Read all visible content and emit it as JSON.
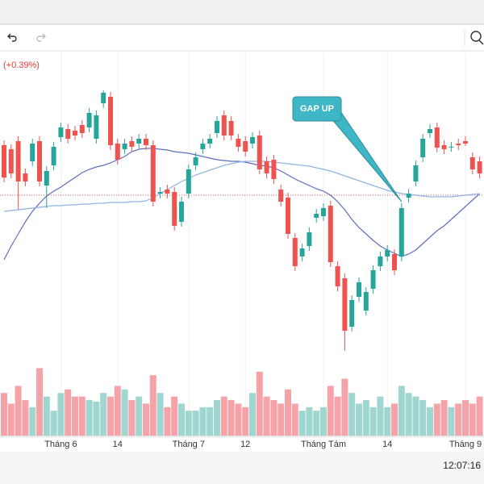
{
  "change_text": "(+0.39%)",
  "clock": "12:07:16",
  "chart_data": {
    "type": "candlestick",
    "categories": [
      null,
      null,
      null,
      null,
      null,
      null,
      null,
      null,
      "Tháng 6",
      null,
      null,
      null,
      null,
      null,
      null,
      null,
      "14",
      null,
      null,
      null,
      null,
      null,
      null,
      null,
      null,
      null,
      "Tháng 7",
      null,
      null,
      null,
      null,
      null,
      null,
      null,
      "12",
      null,
      null,
      null,
      null,
      null,
      null,
      null,
      null,
      null,
      null,
      "Tháng Tám",
      null,
      null,
      null,
      null,
      null,
      null,
      null,
      null,
      "14",
      null,
      null,
      null,
      null,
      null,
      null,
      null,
      null,
      null,
      null,
      "Tháng 9",
      null,
      null
    ],
    "open": [
      270,
      265,
      275,
      235,
      250,
      275,
      220,
      245,
      280,
      290,
      288,
      295,
      292,
      278,
      322,
      330,
      272,
      265,
      275,
      272,
      278,
      270,
      210,
      215,
      212,
      175,
      210,
      245,
      265,
      272,
      285,
      307,
      300,
      278,
      275,
      272,
      282,
      250,
      252,
      215,
      205,
      155,
      132,
      145,
      180,
      182,
      195,
      120,
      105,
      45,
      82,
      65,
      92,
      120,
      132,
      135,
      132,
      205,
      225,
      255,
      285,
      292,
      270,
      268,
      272,
      275,
      255,
      250
    ],
    "close": [
      230,
      235,
      225,
      225,
      272,
      225,
      238,
      268,
      292,
      278,
      282,
      285,
      310,
      307,
      335,
      270,
      252,
      272,
      268,
      278,
      270,
      200,
      212,
      210,
      170,
      200,
      240,
      255,
      272,
      278,
      300,
      282,
      282,
      268,
      262,
      280,
      240,
      235,
      228,
      200,
      160,
      120,
      142,
      162,
      185,
      192,
      125,
      95,
      40,
      78,
      100,
      88,
      115,
      132,
      140,
      115,
      192,
      210,
      245,
      278,
      290,
      267,
      265,
      268,
      270,
      272,
      240,
      235
    ],
    "high": [
      276,
      271,
      281,
      241,
      278,
      281,
      244,
      274,
      298,
      296,
      294,
      301,
      316,
      313,
      338,
      336,
      278,
      278,
      281,
      284,
      284,
      276,
      218,
      221,
      218,
      206,
      246,
      261,
      278,
      284,
      306,
      313,
      306,
      284,
      281,
      286,
      288,
      256,
      258,
      221,
      211,
      161,
      148,
      168,
      191,
      198,
      201,
      126,
      111,
      84,
      106,
      94,
      121,
      138,
      146,
      141,
      198,
      216,
      251,
      284,
      296,
      298,
      276,
      274,
      278,
      281,
      261,
      256
    ],
    "low": [
      224,
      229,
      190,
      219,
      244,
      219,
      192,
      239,
      274,
      272,
      276,
      279,
      286,
      272,
      316,
      264,
      246,
      259,
      262,
      266,
      264,
      194,
      204,
      204,
      164,
      169,
      204,
      239,
      259,
      266,
      279,
      276,
      276,
      262,
      256,
      266,
      234,
      229,
      222,
      194,
      154,
      114,
      126,
      139,
      174,
      176,
      119,
      89,
      15,
      39,
      76,
      59,
      86,
      114,
      126,
      109,
      126,
      199,
      219,
      249,
      279,
      261,
      259,
      262,
      264,
      269,
      234,
      229
    ],
    "volume": [
      60,
      45,
      70,
      50,
      40,
      95,
      55,
      35,
      60,
      65,
      55,
      55,
      50,
      48,
      60,
      55,
      70,
      65,
      50,
      55,
      45,
      85,
      60,
      40,
      55,
      45,
      35,
      35,
      40,
      40,
      50,
      55,
      50,
      45,
      40,
      60,
      90,
      55,
      50,
      45,
      65,
      45,
      35,
      40,
      35,
      40,
      70,
      55,
      80,
      60,
      45,
      50,
      40,
      55,
      40,
      45,
      70,
      60,
      55,
      50,
      40,
      45,
      50,
      40,
      45,
      50,
      45,
      55
    ],
    "ma_series": [
      {
        "color": "#5b6fc0",
        "values": [
          128,
          145,
          160,
          175,
          188,
          198,
          207,
          213,
          218,
          224,
          230,
          236,
          240,
          243,
          245,
          248,
          252,
          256,
          262,
          265,
          266,
          266,
          265,
          264,
          262,
          261,
          260,
          258,
          256,
          254,
          252,
          251,
          250,
          250,
          249,
          247,
          245,
          244,
          242,
          238,
          233,
          228,
          224,
          220,
          216,
          213,
          208,
          200,
          190,
          178,
          168,
          160,
          152,
          145,
          140,
          136,
          132,
          135,
          140,
          148,
          156,
          164,
          170,
          178,
          186,
          194,
          202,
          210
        ]
      },
      {
        "color": "#8fb4e3",
        "values": [
          188,
          189,
          190,
          191,
          192,
          193,
          194,
          195,
          195,
          196,
          196,
          197,
          197,
          198,
          198,
          199,
          199,
          199,
          200,
          200,
          201,
          205,
          210,
          215,
          220,
          225,
          229,
          233,
          236,
          239,
          242,
          245,
          247,
          249,
          250,
          250,
          250,
          250,
          249,
          248,
          247,
          246,
          245,
          244,
          242,
          240,
          238,
          235,
          232,
          229,
          226,
          223,
          220,
          217,
          214,
          212,
          210,
          209,
          208,
          207,
          206,
          206,
          206,
          206,
          207,
          208,
          209,
          210
        ]
      }
    ],
    "price_line": 208,
    "up_color": "#26a69a",
    "down_color": "#ef5350",
    "volume_up_color": "#9fd6cf",
    "volume_down_color": "#f5a3a8",
    "ylim": [
      0,
      385
    ],
    "vlim": [
      0,
      100
    ],
    "annotation": {
      "text": "GAP UP",
      "index": 56
    }
  }
}
